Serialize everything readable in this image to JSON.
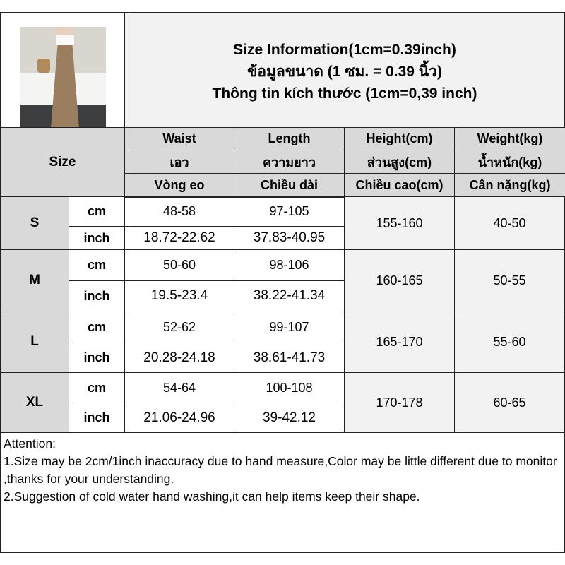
{
  "title": {
    "line1": "Size Information(1cm=0.39inch)",
    "line2": "ข้อมูลขนาด (1 ซม. = 0.39 นิ้ว)",
    "line3": "Thông tin kích thước (1cm=0,39 inch)"
  },
  "header": {
    "size": "Size",
    "columns": [
      {
        "en": "Waist",
        "th": "เอว",
        "vi": "Vòng eo"
      },
      {
        "en": "Length",
        "th": "ความยาว",
        "vi": "Chiều dài"
      },
      {
        "en": "Height(cm)",
        "th": "ส่วนสูง(cm)",
        "vi": "Chiều cao(cm)"
      },
      {
        "en": "Weight(kg)",
        "th": "น้ำหนัก(kg)",
        "vi": "Cân nặng(kg)"
      }
    ]
  },
  "rows": [
    {
      "size": "S",
      "cm_label": "cm",
      "inch_label": "inch",
      "waist_cm": "48-58",
      "length_cm": "97-105",
      "waist_inch": "18.72-22.62",
      "length_inch": "37.83-40.95",
      "height": "155-160",
      "weight": "40-50"
    },
    {
      "size": "M",
      "cm_label": "cm",
      "inch_label": "inch",
      "waist_cm": "50-60",
      "length_cm": "98-106",
      "waist_inch": "19.5-23.4",
      "length_inch": "38.22-41.34",
      "height": "160-165",
      "weight": "50-55"
    },
    {
      "size": "L",
      "cm_label": "cm",
      "inch_label": "inch",
      "waist_cm": "52-62",
      "length_cm": "99-107",
      "waist_inch": "20.28-24.18",
      "length_inch": "38.61-41.73",
      "height": "165-170",
      "weight": "55-60"
    },
    {
      "size": "XL",
      "cm_label": "cm",
      "inch_label": "inch",
      "waist_cm": "54-64",
      "length_cm": "100-108",
      "waist_inch": "21.06-24.96",
      "length_inch": "39-42.12",
      "height": "170-178",
      "weight": "60-65"
    }
  ],
  "attention": {
    "heading": "Attention:",
    "note1": "1.Size may be 2cm/1inch inaccuracy due to hand measure,Color may be little different due to monitor ,thanks for your understanding.",
    "note2": "2.Suggestion of cold water hand washing,it can help items keep their shape."
  }
}
